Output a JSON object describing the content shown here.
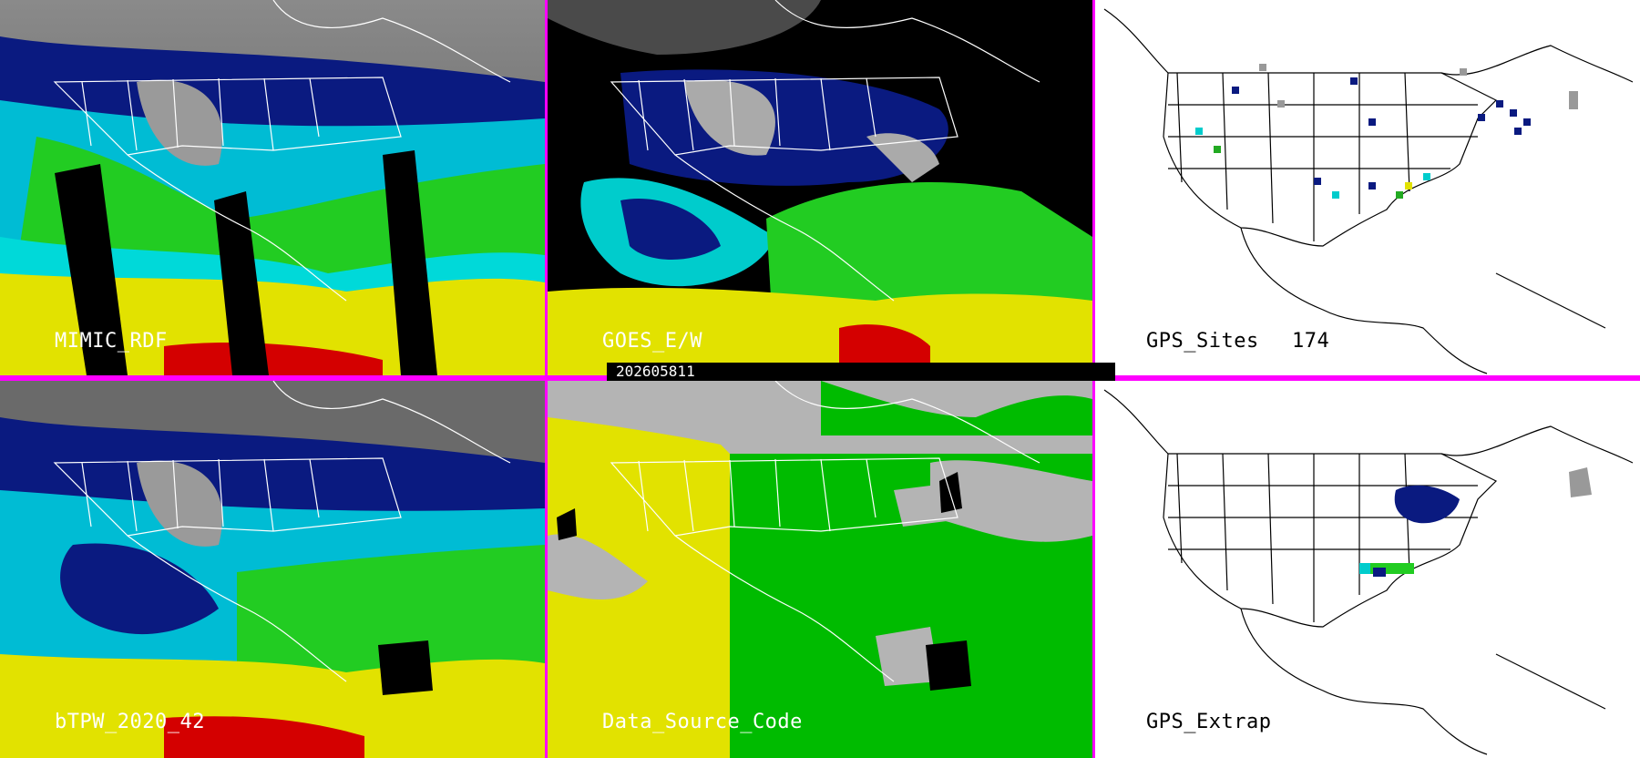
{
  "panels": {
    "mimic_rdf": "MIMIC_RDF",
    "goes_ew": "GOES_E/W",
    "gps_sites_label": "GPS_Sites",
    "gps_sites_count": "174",
    "btpw": "bTPW_2020_42",
    "data_source": "Data_Source_Code",
    "gps_extrap": "GPS_Extrap"
  },
  "timestamp": "202605811",
  "colors": {
    "divider": "#ff00ff",
    "precip_high": "#d40000",
    "precip_yellow": "#e6e600",
    "precip_green": "#00cc00",
    "precip_cyan": "#00e6e6",
    "precip_blue": "#0000a0",
    "source_gray": "#b4b4b4"
  }
}
